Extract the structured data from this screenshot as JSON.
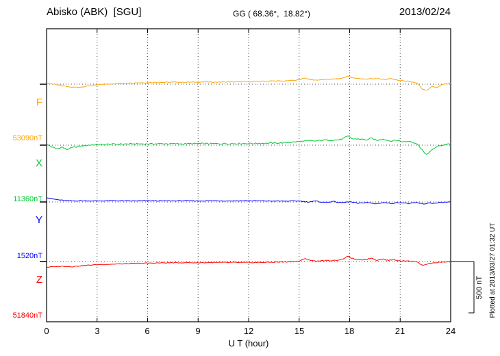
{
  "header": {
    "station": "Abisko (ABK)  [SGU]",
    "coords": "GG ( 68.36°,  18.82°)",
    "date": "2013/02/24"
  },
  "axis": {
    "xlabel": "U T (hour)",
    "ticks": [
      "0",
      "3",
      "6",
      "9",
      "12",
      "15",
      "18",
      "21",
      "24"
    ]
  },
  "scalebar": {
    "label": "500 nT",
    "nT": 500
  },
  "plotted_note": "Plotted at 2013/03/27 01:32 UT",
  "chart_data": {
    "type": "line",
    "title": "Abisko (ABK) [SGU] magnetogram 2013/02/24",
    "xlabel": "U T (hour)",
    "xlim": [
      0,
      24
    ],
    "xticks": [
      0,
      3,
      6,
      9,
      12,
      15,
      18,
      21,
      24
    ],
    "grid": "dotted vertical at 3h intervals, dotted horizontal baseline per component",
    "scale_bar_nT": 500,
    "series": [
      {
        "name": "F",
        "baseline_label": "53090nT",
        "baseline_nT": 53090,
        "color": "#ffa500",
        "noise_nT": 4,
        "points": [
          [
            0,
            10
          ],
          [
            0.5,
            0
          ],
          [
            1,
            -18
          ],
          [
            1.5,
            -30
          ],
          [
            2,
            -28
          ],
          [
            2.5,
            -18
          ],
          [
            3,
            -8
          ],
          [
            3.5,
            0
          ],
          [
            4,
            5
          ],
          [
            4.5,
            8
          ],
          [
            5,
            12
          ],
          [
            5.5,
            14
          ],
          [
            6,
            15
          ],
          [
            6.5,
            17
          ],
          [
            7,
            18
          ],
          [
            7.5,
            20
          ],
          [
            8,
            18
          ],
          [
            8.5,
            20
          ],
          [
            9,
            20
          ],
          [
            9.5,
            22
          ],
          [
            10,
            20
          ],
          [
            10.5,
            22
          ],
          [
            11,
            22
          ],
          [
            11.5,
            24
          ],
          [
            12,
            25
          ],
          [
            12.5,
            27
          ],
          [
            13,
            30
          ],
          [
            13.5,
            32
          ],
          [
            14,
            30
          ],
          [
            14.5,
            35
          ],
          [
            15,
            42
          ],
          [
            15.3,
            62
          ],
          [
            15.6,
            46
          ],
          [
            16,
            40
          ],
          [
            16.5,
            45
          ],
          [
            17,
            50
          ],
          [
            17.5,
            55
          ],
          [
            17.9,
            80
          ],
          [
            18.2,
            60
          ],
          [
            18.5,
            55
          ],
          [
            19,
            50
          ],
          [
            19.5,
            56
          ],
          [
            20,
            46
          ],
          [
            20.5,
            52
          ],
          [
            21,
            36
          ],
          [
            21.5,
            30
          ],
          [
            22,
            10
          ],
          [
            22.3,
            -45
          ],
          [
            22.6,
            -58
          ],
          [
            22.9,
            -20
          ],
          [
            23.2,
            -32
          ],
          [
            23.5,
            -2
          ],
          [
            24,
            10
          ]
        ]
      },
      {
        "name": "X",
        "baseline_label": "11360nT",
        "baseline_nT": 11360,
        "color": "#00c832",
        "noise_nT": 6,
        "points": [
          [
            0,
            5
          ],
          [
            0.3,
            -15
          ],
          [
            0.6,
            -38
          ],
          [
            0.9,
            -18
          ],
          [
            1.2,
            -42
          ],
          [
            1.5,
            -25
          ],
          [
            2,
            -10
          ],
          [
            2.5,
            0
          ],
          [
            3,
            5
          ],
          [
            3.5,
            8
          ],
          [
            4,
            10
          ],
          [
            5,
            12
          ],
          [
            6,
            12
          ],
          [
            7,
            14
          ],
          [
            8,
            13
          ],
          [
            9,
            15
          ],
          [
            10,
            14
          ],
          [
            11,
            15
          ],
          [
            12,
            16
          ],
          [
            13,
            18
          ],
          [
            14,
            22
          ],
          [
            14.5,
            28
          ],
          [
            15,
            35
          ],
          [
            15.5,
            42
          ],
          [
            16,
            40
          ],
          [
            16.5,
            50
          ],
          [
            17,
            48
          ],
          [
            17.5,
            55
          ],
          [
            17.9,
            88
          ],
          [
            18.2,
            58
          ],
          [
            18.5,
            62
          ],
          [
            19,
            50
          ],
          [
            19.3,
            68
          ],
          [
            19.6,
            45
          ],
          [
            20,
            60
          ],
          [
            20.4,
            40
          ],
          [
            20.8,
            48
          ],
          [
            21.2,
            32
          ],
          [
            21.6,
            38
          ],
          [
            22,
            12
          ],
          [
            22.3,
            -40
          ],
          [
            22.5,
            -95
          ],
          [
            22.8,
            -62
          ],
          [
            23.1,
            -18
          ],
          [
            23.4,
            -5
          ],
          [
            23.7,
            8
          ],
          [
            24,
            15
          ]
        ]
      },
      {
        "name": "Y",
        "baseline_label": "1520nT",
        "baseline_nT": 1520,
        "color": "#0000ff",
        "noise_nT": 4,
        "points": [
          [
            0,
            45
          ],
          [
            0.4,
            28
          ],
          [
            0.8,
            18
          ],
          [
            1.2,
            12
          ],
          [
            1.6,
            10
          ],
          [
            2,
            12
          ],
          [
            3,
            10
          ],
          [
            4,
            12
          ],
          [
            5,
            10
          ],
          [
            6,
            12
          ],
          [
            7,
            10
          ],
          [
            8,
            12
          ],
          [
            9,
            10
          ],
          [
            10,
            12
          ],
          [
            11,
            10
          ],
          [
            12,
            12
          ],
          [
            13,
            10
          ],
          [
            14,
            8
          ],
          [
            15,
            10
          ],
          [
            15.5,
            0
          ],
          [
            16,
            8
          ],
          [
            16.5,
            -5
          ],
          [
            17,
            5
          ],
          [
            17.5,
            -8
          ],
          [
            18,
            2
          ],
          [
            18.5,
            -14
          ],
          [
            19,
            -4
          ],
          [
            19.5,
            -18
          ],
          [
            20,
            -6
          ],
          [
            20.5,
            -14
          ],
          [
            21,
            -4
          ],
          [
            21.5,
            -16
          ],
          [
            22,
            -6
          ],
          [
            22.4,
            -22
          ],
          [
            22.7,
            -8
          ],
          [
            23,
            -14
          ],
          [
            23.5,
            -4
          ],
          [
            24,
            0
          ]
        ]
      },
      {
        "name": "Z",
        "baseline_label": "51840nT",
        "baseline_nT": 51840,
        "color": "#ff0000",
        "noise_nT": 4,
        "points": [
          [
            0,
            -55
          ],
          [
            0.5,
            -50
          ],
          [
            1,
            -46
          ],
          [
            1.5,
            -50
          ],
          [
            2,
            -42
          ],
          [
            2.5,
            -36
          ],
          [
            3,
            -30
          ],
          [
            4,
            -25
          ],
          [
            5,
            -20
          ],
          [
            6,
            -16
          ],
          [
            7,
            -13
          ],
          [
            8,
            -11
          ],
          [
            9,
            -12
          ],
          [
            10,
            -10
          ],
          [
            11,
            -9
          ],
          [
            12,
            -10
          ],
          [
            13,
            -8
          ],
          [
            14,
            -5
          ],
          [
            14.5,
            -2
          ],
          [
            15,
            4
          ],
          [
            15.4,
            30
          ],
          [
            15.7,
            10
          ],
          [
            16,
            5
          ],
          [
            16.5,
            8
          ],
          [
            17,
            10
          ],
          [
            17.5,
            18
          ],
          [
            17.9,
            50
          ],
          [
            18.2,
            26
          ],
          [
            18.5,
            15
          ],
          [
            19,
            20
          ],
          [
            19.3,
            34
          ],
          [
            19.6,
            14
          ],
          [
            20,
            24
          ],
          [
            20.3,
            10
          ],
          [
            20.6,
            20
          ],
          [
            21,
            6
          ],
          [
            21.5,
            8
          ],
          [
            22,
            -4
          ],
          [
            22.3,
            -36
          ],
          [
            22.6,
            -24
          ],
          [
            23,
            -12
          ],
          [
            23.5,
            -6
          ],
          [
            24,
            0
          ]
        ]
      }
    ]
  }
}
